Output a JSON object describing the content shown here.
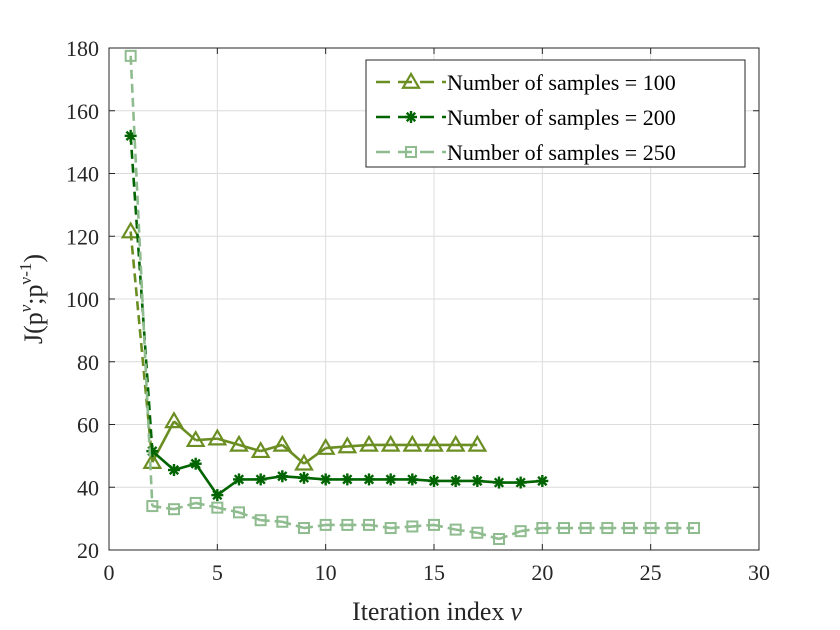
{
  "chart_data": {
    "type": "line",
    "title": "",
    "xlabel": "Iteration index",
    "xlabel_symbol": "ν",
    "ylabel_parts": {
      "prefix": "J(p",
      "sup1": "ν",
      "middle": ";p",
      "sup2": "ν-1",
      "suffix": ")"
    },
    "xlim": [
      0,
      30
    ],
    "ylim": [
      20,
      180
    ],
    "xticks": [
      0,
      5,
      10,
      15,
      20,
      25,
      30
    ],
    "yticks": [
      20,
      40,
      60,
      80,
      100,
      120,
      140,
      160,
      180
    ],
    "grid": true,
    "legend_position": "top-right",
    "series": [
      {
        "name": "Number of samples = 100",
        "color": "#6b8e23",
        "marker": "triangle",
        "line": "dashed-first-then-solid",
        "x": [
          1,
          2,
          3,
          4,
          5,
          6,
          7,
          8,
          9,
          10,
          11,
          12,
          13,
          14,
          15,
          16,
          17
        ],
        "values": [
          121.5,
          48,
          61,
          55,
          55.5,
          53.5,
          51.5,
          53.5,
          47.5,
          52.5,
          53,
          53.5,
          53.5,
          53.5,
          53.5,
          53.5,
          53.5
        ]
      },
      {
        "name": "Number of samples = 200",
        "color": "#006400",
        "marker": "asterisk",
        "line": "dashed-first-then-solid",
        "x": [
          1,
          2,
          3,
          4,
          5,
          6,
          7,
          8,
          9,
          10,
          11,
          12,
          13,
          14,
          15,
          16,
          17,
          18,
          19,
          20
        ],
        "values": [
          152,
          51.5,
          45.5,
          47.5,
          37.5,
          42.5,
          42.5,
          43.5,
          43,
          42.5,
          42.5,
          42.5,
          42.5,
          42.5,
          42,
          42,
          42,
          41.5,
          41.5,
          42
        ]
      },
      {
        "name": "Number of samples = 250",
        "color": "#8fbc8f",
        "marker": "square",
        "line": "dashed",
        "x": [
          1,
          2,
          3,
          4,
          5,
          6,
          7,
          8,
          9,
          10,
          11,
          12,
          13,
          14,
          15,
          16,
          17,
          18,
          19,
          20,
          21,
          22,
          23,
          24,
          25,
          26,
          27
        ],
        "values": [
          177.5,
          34,
          33,
          35,
          33.5,
          32,
          29.5,
          29,
          27,
          28,
          28,
          28,
          27,
          27.5,
          28,
          26.5,
          25.5,
          23.5,
          26,
          27,
          27,
          27,
          27,
          27,
          27,
          27,
          27
        ]
      }
    ]
  }
}
